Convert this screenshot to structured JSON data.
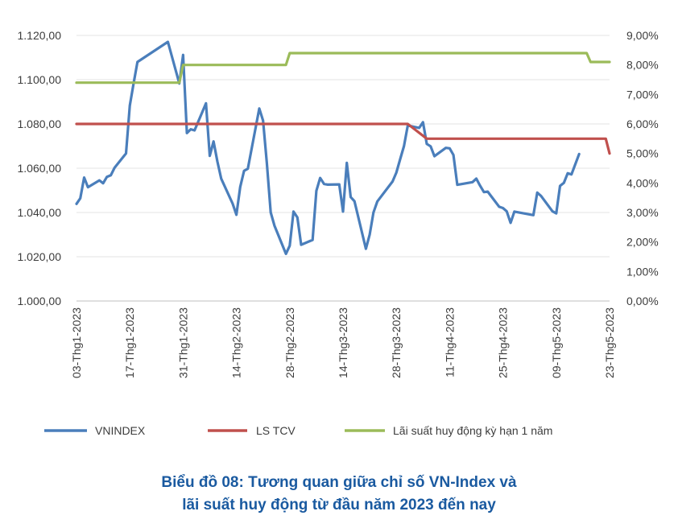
{
  "chart_data": {
    "type": "line",
    "caption_line1": "Biểu đồ 08: Tương quan giữa chỉ số VN-Index và",
    "caption_line2": "lãi suất huy động từ đầu năm 2023 đến nay",
    "left_axis": {
      "range": [
        1000,
        1120
      ],
      "ticks": [
        1000,
        1020,
        1040,
        1060,
        1080,
        1100,
        1120
      ],
      "tick_labels": [
        "1.000,00",
        "1.020,00",
        "1.040,00",
        "1.060,00",
        "1.080,00",
        "1.100,00",
        "1.120,00"
      ]
    },
    "right_axis": {
      "range": [
        0,
        9
      ],
      "ticks": [
        0,
        1,
        2,
        3,
        4,
        5,
        6,
        7,
        8,
        9
      ],
      "tick_labels": [
        "0,00%",
        "1,00%",
        "2,00%",
        "3,00%",
        "4,00%",
        "5,00%",
        "6,00%",
        "7,00%",
        "8,00%",
        "9,00%"
      ]
    },
    "x_axis": {
      "range": [
        "2023-01-03",
        "2023-05-23"
      ],
      "tick_dates": [
        "2023-01-03",
        "2023-01-17",
        "2023-01-31",
        "2023-02-14",
        "2023-02-28",
        "2023-03-14",
        "2023-03-28",
        "2023-04-11",
        "2023-04-25",
        "2023-05-09",
        "2023-05-23"
      ],
      "tick_labels": [
        "03-Thg1-2023",
        "17-Thg1-2023",
        "31-Thg1-2023",
        "14-Thg2-2023",
        "28-Thg2-2023",
        "14-Thg3-2023",
        "28-Thg3-2023",
        "11-Thg4-2023",
        "25-Thg4-2023",
        "09-Thg5-2023",
        "23-Thg5-2023"
      ]
    },
    "grid": true,
    "legend_position": "bottom",
    "series": [
      {
        "name": "VNINDEX",
        "axis": "left",
        "color": "#4a7ebb",
        "points": [
          [
            "2023-01-03",
            1043.9
          ],
          [
            "2023-01-04",
            1046.4
          ],
          [
            "2023-01-05",
            1055.8
          ],
          [
            "2023-01-06",
            1051.4
          ],
          [
            "2023-01-09",
            1054.5
          ],
          [
            "2023-01-10",
            1053.2
          ],
          [
            "2023-01-11",
            1056.1
          ],
          [
            "2023-01-12",
            1056.8
          ],
          [
            "2023-01-13",
            1060.2
          ],
          [
            "2023-01-16",
            1066.7
          ],
          [
            "2023-01-17",
            1088.3
          ],
          [
            "2023-01-18",
            1098.3
          ],
          [
            "2023-01-19",
            1108.0
          ],
          [
            "2023-01-27",
            1117.1
          ],
          [
            "2023-01-30",
            1098.3
          ],
          [
            "2023-01-31",
            1111.2
          ],
          [
            "2023-02-01",
            1075.9
          ],
          [
            "2023-02-02",
            1077.6
          ],
          [
            "2023-02-03",
            1077.1
          ],
          [
            "2023-02-06",
            1089.3
          ],
          [
            "2023-02-07",
            1065.6
          ],
          [
            "2023-02-08",
            1072.1
          ],
          [
            "2023-02-09",
            1063.0
          ],
          [
            "2023-02-10",
            1055.3
          ],
          [
            "2023-02-13",
            1044.0
          ],
          [
            "2023-02-14",
            1039.0
          ],
          [
            "2023-02-15",
            1051.5
          ],
          [
            "2023-02-16",
            1058.8
          ],
          [
            "2023-02-17",
            1059.8
          ],
          [
            "2023-02-20",
            1087.0
          ],
          [
            "2023-02-21",
            1081.5
          ],
          [
            "2023-02-22",
            1062.3
          ],
          [
            "2023-02-23",
            1040.0
          ],
          [
            "2023-02-24",
            1034.0
          ],
          [
            "2023-02-27",
            1021.3
          ],
          [
            "2023-02-28",
            1025.0
          ],
          [
            "2023-03-01",
            1040.4
          ],
          [
            "2023-03-02",
            1037.8
          ],
          [
            "2023-03-03",
            1025.4
          ],
          [
            "2023-03-06",
            1027.6
          ],
          [
            "2023-03-07",
            1049.8
          ],
          [
            "2023-03-08",
            1055.6
          ],
          [
            "2023-03-09",
            1052.9
          ],
          [
            "2023-03-10",
            1052.6
          ],
          [
            "2023-03-13",
            1052.7
          ],
          [
            "2023-03-14",
            1040.4
          ],
          [
            "2023-03-15",
            1062.4
          ],
          [
            "2023-03-16",
            1047.0
          ],
          [
            "2023-03-17",
            1045.1
          ],
          [
            "2023-03-20",
            1023.6
          ],
          [
            "2023-03-21",
            1030.0
          ],
          [
            "2023-03-22",
            1040.0
          ],
          [
            "2023-03-23",
            1045.0
          ],
          [
            "2023-03-27",
            1054.0
          ],
          [
            "2023-03-28",
            1058.0
          ],
          [
            "2023-03-29",
            1064.0
          ],
          [
            "2023-03-30",
            1070.0
          ],
          [
            "2023-03-31",
            1079.3
          ],
          [
            "2023-04-03",
            1078.2
          ],
          [
            "2023-04-04",
            1080.8
          ],
          [
            "2023-04-05",
            1071.0
          ],
          [
            "2023-04-06",
            1069.9
          ],
          [
            "2023-04-07",
            1065.4
          ],
          [
            "2023-04-10",
            1069.2
          ],
          [
            "2023-04-11",
            1069.0
          ],
          [
            "2023-04-12",
            1066.0
          ],
          [
            "2023-04-13",
            1052.5
          ],
          [
            "2023-04-14",
            1052.8
          ],
          [
            "2023-04-17",
            1053.7
          ],
          [
            "2023-04-18",
            1055.3
          ],
          [
            "2023-04-19",
            1052.1
          ],
          [
            "2023-04-20",
            1049.2
          ],
          [
            "2023-04-21",
            1049.4
          ],
          [
            "2023-04-24",
            1042.6
          ],
          [
            "2023-04-25",
            1042.0
          ],
          [
            "2023-04-26",
            1040.5
          ],
          [
            "2023-04-27",
            1035.3
          ],
          [
            "2023-04-28",
            1040.4
          ],
          [
            "2023-05-03",
            1038.8
          ],
          [
            "2023-05-04",
            1049.0
          ],
          [
            "2023-05-05",
            1047.5
          ],
          [
            "2023-05-08",
            1040.5
          ],
          [
            "2023-05-09",
            1039.6
          ],
          [
            "2023-05-10",
            1052.0
          ],
          [
            "2023-05-11",
            1053.4
          ],
          [
            "2023-05-12",
            1057.7
          ],
          [
            "2023-05-13",
            1057.2
          ],
          [
            "2023-05-15",
            1066.4
          ]
        ]
      },
      {
        "name": "LS TCV",
        "axis": "right",
        "color": "#c0504d",
        "points": [
          [
            "2023-01-03",
            6.0
          ],
          [
            "2023-03-31",
            6.0
          ],
          [
            "2023-04-05",
            5.5
          ],
          [
            "2023-05-22",
            5.5
          ],
          [
            "2023-05-23",
            5.0
          ]
        ]
      },
      {
        "name": "Lãi suất huy động kỳ hạn 1 năm",
        "axis": "right",
        "color": "#9bbb59",
        "points": [
          [
            "2023-01-03",
            7.4
          ],
          [
            "2023-01-30",
            7.4
          ],
          [
            "2023-01-31",
            8.0
          ],
          [
            "2023-02-27",
            8.0
          ],
          [
            "2023-02-28",
            8.4
          ],
          [
            "2023-05-17",
            8.4
          ],
          [
            "2023-05-18",
            8.1
          ],
          [
            "2023-05-23",
            8.1
          ]
        ]
      }
    ]
  }
}
